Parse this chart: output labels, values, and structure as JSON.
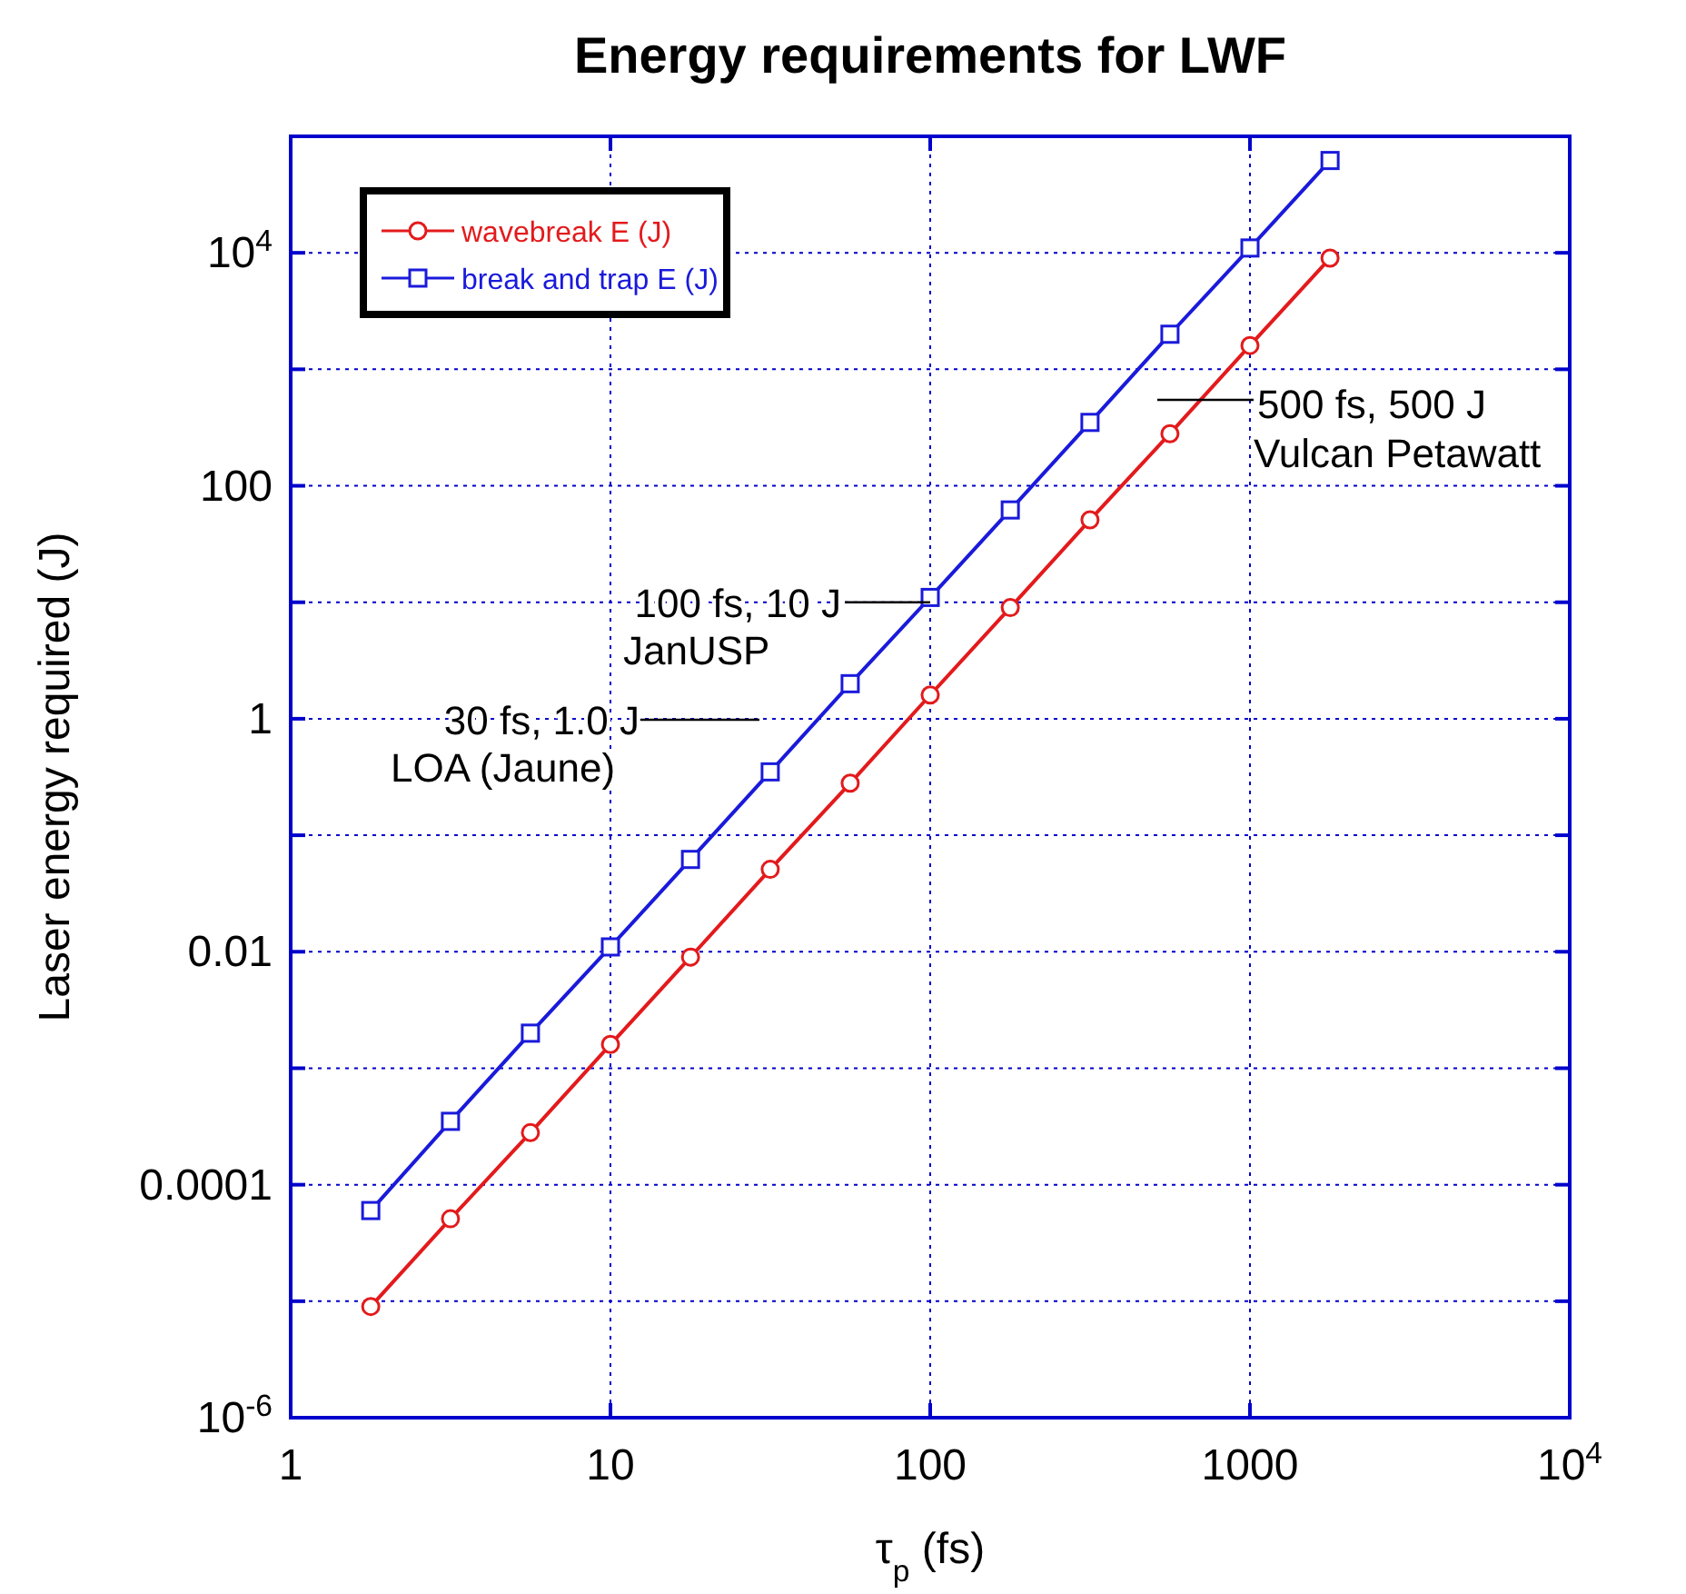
{
  "chart_data": {
    "type": "line",
    "title": "Energy requirements for LWF",
    "xlabel": "τ$_{p}$ (fs)",
    "ylabel": "Laser energy required (J)",
    "log": "xy",
    "grid": true,
    "legend": "top left",
    "xlim": [
      1,
      10000
    ],
    "xticks": [
      1,
      10,
      100,
      1000,
      {
        "value": 10000,
        "label": "10$^{4}$"
      }
    ],
    "ylim": [
      1e-06,
      100000
    ],
    "yticks": [
      {
        "value": 1e-06,
        "label": "10$^{-6}$"
      },
      {
        "value": 1e-05,
        "label": null
      },
      0.0001,
      {
        "value": 0.001,
        "label": null
      },
      0.01,
      {
        "value": 0.1,
        "label": null
      },
      1,
      {
        "value": 10,
        "label": null
      },
      100,
      {
        "value": 1000,
        "label": null
      },
      {
        "value": 10000,
        "label": "10$^{4}$"
      },
      {
        "value": 100000,
        "label": null
      }
    ],
    "x": [
      1.78,
      3.16,
      5.62,
      10,
      17.8,
      31.6,
      56.2,
      100,
      178,
      316,
      562,
      1000,
      1780
    ],
    "series": [
      {
        "name": "wavebreak E (J)",
        "color": "#e31a1c",
        "marker": "circle",
        "values": [
          9e-06,
          5.1e-05,
          0.00028,
          0.0016,
          0.009,
          0.051,
          0.28,
          1.6,
          9,
          51,
          280,
          1600,
          9000
        ]
      },
      {
        "name": "break and trap E (J)",
        "color": "#1a1adb",
        "marker": "square",
        "values": [
          6e-05,
          0.00035,
          0.002,
          0.011,
          0.062,
          0.35,
          2,
          11,
          62,
          350,
          2000,
          11000,
          62000
        ]
      }
    ],
    "annotations": [
      "500 fs, 500 J\nVulcan Petawatt",
      {
        "text": "100 fs, 10 J\nJanUSP",
        "x": 100,
        "y": 10
      },
      "30 fs, 1.0 J\nLOA (Jaune)"
    ]
  }
}
